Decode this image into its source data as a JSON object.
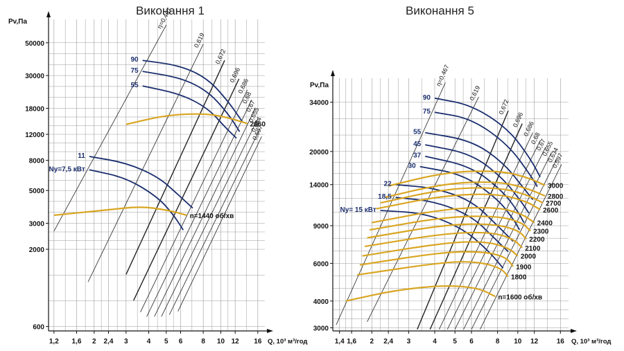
{
  "colors": {
    "fan_curve": "#1a2e6e",
    "system_curve": "#d9a521",
    "grid": "#9a9a9a",
    "axis": "#111111",
    "efficiency_line": "#222222"
  },
  "chart_data": [
    {
      "type": "line",
      "title": "Виконання 1",
      "ylabel": "Pv,Па",
      "xlabel": "Q, 10³ м³/год",
      "x_scale": "log",
      "y_scale": "log",
      "xlim": [
        1.12,
        17.5
      ],
      "ylim": [
        560,
        72000
      ],
      "grid": true,
      "x_ticks": [
        1.2,
        1.6,
        2,
        2.4,
        3,
        4,
        5,
        6,
        8,
        10,
        12,
        16
      ],
      "x_tick_labels": [
        "1,2",
        "1,6",
        "2",
        "2,4",
        "3",
        "4",
        "5",
        "6",
        "8",
        "10",
        "12",
        "16"
      ],
      "y_ticks": [
        600,
        2000,
        3000,
        5000,
        8000,
        12000,
        18000,
        30000,
        50000
      ],
      "y_tick_labels": [
        "600",
        "2000",
        "3000",
        "5000",
        "8000",
        "12000",
        "18000",
        "30000",
        "50000"
      ],
      "efficiency_lines": [
        {
          "label": "η=0,467",
          "points": [
            [
              1.2,
              2650
            ],
            [
              5.0,
              66000
            ]
          ]
        },
        {
          "label": "0,619",
          "points": [
            [
              1.85,
              1200
            ],
            [
              8.0,
              49000
            ]
          ]
        },
        {
          "label": "0,672",
          "points": [
            [
              3.0,
              1350
            ],
            [
              10.5,
              38000
            ]
          ]
        },
        {
          "label": "0,696",
          "points": [
            [
              3.3,
              900
            ],
            [
              12.6,
              28500
            ]
          ]
        },
        {
          "label": "0,686",
          "points": [
            [
              3.6,
              750
            ],
            [
              14.0,
              24000
            ]
          ]
        },
        {
          "label": "0,68",
          "points": [
            [
              3.9,
              700
            ],
            [
              14.8,
              20500
            ]
          ]
        },
        {
          "label": "0,67",
          "points": [
            [
              4.3,
              700
            ],
            [
              15.5,
              18000
            ]
          ]
        },
        {
          "label": "0,655",
          "points": [
            [
              4.7,
              700
            ],
            [
              16.0,
              15300
            ]
          ]
        },
        {
          "label": "0,634",
          "points": [
            [
              5.2,
              720
            ],
            [
              16.5,
              13200
            ]
          ]
        },
        {
          "label": "0,597",
          "points": [
            [
              5.8,
              760
            ],
            [
              16.8,
              11600
            ]
          ]
        }
      ],
      "series": [
        {
          "name": "90",
          "kind": "fan",
          "points": [
            [
              3.7,
              38000
            ],
            [
              6.0,
              35000
            ],
            [
              8.5,
              28500
            ],
            [
              11.0,
              20000
            ],
            [
              13.2,
              14500
            ]
          ]
        },
        {
          "name": "75",
          "kind": "fan",
          "points": [
            [
              3.7,
              32000
            ],
            [
              6.0,
              29000
            ],
            [
              8.5,
              23500
            ],
            [
              11.0,
              16500
            ],
            [
              12.7,
              12500
            ]
          ]
        },
        {
          "name": "55",
          "kind": "fan",
          "points": [
            [
              3.7,
              25500
            ],
            [
              6.0,
              22500
            ],
            [
              8.5,
              18000
            ],
            [
              10.5,
              13500
            ],
            [
              12.2,
              11300
            ]
          ]
        },
        {
          "name": "11",
          "kind": "fan",
          "points": [
            [
              1.88,
              8500
            ],
            [
              3.0,
              7700
            ],
            [
              4.5,
              6200
            ],
            [
              5.8,
              4700
            ],
            [
              7.0,
              3800
            ]
          ]
        },
        {
          "name": "Ny=7,5 кВт",
          "kind": "fan",
          "points": [
            [
              1.88,
              6900
            ],
            [
              3.0,
              6100
            ],
            [
              4.5,
              4500
            ],
            [
              5.5,
              3400
            ],
            [
              6.2,
              2700
            ]
          ]
        },
        {
          "name": "2960",
          "kind": "system",
          "points": [
            [
              3.0,
              14000
            ],
            [
              5.0,
              16200
            ],
            [
              8.0,
              16600
            ],
            [
              10.5,
              15800
            ],
            [
              14.0,
              14200
            ]
          ]
        },
        {
          "name": "n=1440 об/хв",
          "kind": "system",
          "points": [
            [
              1.2,
              3400
            ],
            [
              2.4,
              3700
            ],
            [
              3.6,
              3900
            ],
            [
              5.0,
              3700
            ],
            [
              6.5,
              3400
            ]
          ]
        }
      ]
    },
    {
      "type": "line",
      "title": "Виконання 5",
      "ylabel": "Pv,Па",
      "xlabel": "Q, 10³ м³/год",
      "x_scale": "log",
      "y_scale": "log",
      "xlim": [
        1.3,
        17.5
      ],
      "ylim": [
        2900,
        44000
      ],
      "grid": true,
      "x_ticks": [
        1.4,
        1.6,
        2,
        2.4,
        3,
        4,
        5,
        6,
        8,
        10,
        12,
        16
      ],
      "x_tick_labels": [
        "1,4",
        "1,6",
        "2",
        "2,4",
        "3",
        "4",
        "5",
        "6",
        "8",
        "10",
        "12",
        "16"
      ],
      "y_ticks": [
        3000,
        4000,
        6000,
        9000,
        14000,
        20000,
        34000
      ],
      "y_tick_labels": [
        "3000",
        "4000",
        "6000",
        "9000",
        "14000",
        "20000",
        "34000"
      ],
      "efficiency_lines": [
        {
          "label": "η=0,467",
          "points": [
            [
              1.35,
              3100
            ],
            [
              4.5,
              42000
            ]
          ]
        },
        {
          "label": "0,619",
          "points": [
            [
              1.9,
              3200
            ],
            [
              6.5,
              36000
            ]
          ]
        },
        {
          "label": "0,672",
          "points": [
            [
              3.3,
              2950
            ],
            [
              9.0,
              31000
            ]
          ]
        },
        {
          "label": "0,696",
          "points": [
            [
              3.8,
              2950
            ],
            [
              10.5,
              27000
            ]
          ]
        },
        {
          "label": "0,686",
          "points": [
            [
              4.2,
              2950
            ],
            [
              11.8,
              24500
            ]
          ]
        },
        {
          "label": "0,68",
          "points": [
            [
              4.6,
              2950
            ],
            [
              12.8,
              22500
            ]
          ]
        },
        {
          "label": "0,67",
          "points": [
            [
              5.0,
              2950
            ],
            [
              13.6,
              21000
            ]
          ]
        },
        {
          "label": "0,655",
          "points": [
            [
              5.5,
              2950
            ],
            [
              14.5,
              19800
            ]
          ]
        },
        {
          "label": "0,634",
          "points": [
            [
              6.0,
              2950
            ],
            [
              15.4,
              18500
            ]
          ]
        },
        {
          "label": "0,597",
          "points": [
            [
              6.6,
              2950
            ],
            [
              16.2,
              17400
            ]
          ]
        }
      ],
      "series": [
        {
          "name": "90",
          "kind": "fan",
          "points": [
            [
              4.0,
              35500
            ],
            [
              6.0,
              33000
            ],
            [
              9.0,
              25500
            ],
            [
              11.5,
              18500
            ],
            [
              12.8,
              15200
            ]
          ]
        },
        {
          "name": "75",
          "kind": "fan",
          "points": [
            [
              4.0,
              30500
            ],
            [
              6.0,
              28500
            ],
            [
              9.0,
              21500
            ],
            [
              11.5,
              15500
            ],
            [
              12.4,
              13700
            ]
          ]
        },
        {
          "name": "55",
          "kind": "fan",
          "points": [
            [
              3.6,
              24500
            ],
            [
              6.0,
              22500
            ],
            [
              8.5,
              17800
            ],
            [
              10.8,
              13300
            ],
            [
              11.8,
              11900
            ]
          ]
        },
        {
          "name": "45",
          "kind": "fan",
          "points": [
            [
              3.6,
              21500
            ],
            [
              6.0,
              19500
            ],
            [
              8.5,
              15000
            ],
            [
              10.5,
              11500
            ],
            [
              11.3,
              10300
            ]
          ]
        },
        {
          "name": "37",
          "kind": "fan",
          "points": [
            [
              3.6,
              19000
            ],
            [
              6.0,
              17000
            ],
            [
              8.5,
              13000
            ],
            [
              10.0,
              10500
            ],
            [
              10.7,
              9300
            ]
          ]
        },
        {
          "name": "30",
          "kind": "fan",
          "points": [
            [
              3.4,
              17000
            ],
            [
              5.5,
              15600
            ],
            [
              8.0,
              12000
            ],
            [
              9.5,
              9700
            ],
            [
              10.2,
              8600
            ]
          ]
        },
        {
          "name": "22",
          "kind": "fan",
          "points": [
            [
              2.6,
              14000
            ],
            [
              4.0,
              13500
            ],
            [
              6.0,
              11800
            ],
            [
              8.0,
              9000
            ],
            [
              9.5,
              7600
            ]
          ]
        },
        {
          "name": "18,5",
          "kind": "fan",
          "points": [
            [
              2.6,
              12200
            ],
            [
              4.0,
              11700
            ],
            [
              6.0,
              10000
            ],
            [
              7.8,
              7800
            ],
            [
              9.0,
              6800
            ]
          ]
        },
        {
          "name": "Ny= 15 кВт",
          "kind": "fan",
          "points": [
            [
              2.2,
              10600
            ],
            [
              3.6,
              10300
            ],
            [
              5.5,
              8700
            ],
            [
              7.3,
              6800
            ],
            [
              8.5,
              5700
            ]
          ]
        },
        {
          "name": "3000",
          "kind": "system",
          "points": [
            [
              2.4,
              13800
            ],
            [
              4.5,
              16000
            ],
            [
              8.0,
              16300
            ],
            [
              11.0,
              15200
            ],
            [
              13.5,
              13900
            ]
          ]
        },
        {
          "name": "2800",
          "kind": "system",
          "points": [
            [
              2.3,
              12200
            ],
            [
              4.5,
              14200
            ],
            [
              8.0,
              14500
            ],
            [
              11.0,
              13500
            ],
            [
              13.5,
              12400
            ]
          ]
        },
        {
          "name": "2700",
          "kind": "system",
          "points": [
            [
              2.2,
              11500
            ],
            [
              4.5,
              13400
            ],
            [
              8.0,
              13600
            ],
            [
              11.0,
              12600
            ],
            [
              13.2,
              11500
            ]
          ]
        },
        {
          "name": "2600",
          "kind": "system",
          "points": [
            [
              2.1,
              10800
            ],
            [
              4.5,
              12500
            ],
            [
              8.0,
              12700
            ],
            [
              11.0,
              11700
            ],
            [
              12.8,
              10700
            ]
          ]
        },
        {
          "name": "2400",
          "kind": "system",
          "points": [
            [
              2.0,
              9300
            ],
            [
              4.5,
              10800
            ],
            [
              8.0,
              11000
            ],
            [
              10.5,
              10200
            ],
            [
              12.0,
              9300
            ]
          ]
        },
        {
          "name": "2300",
          "kind": "system",
          "points": [
            [
              1.95,
              8600
            ],
            [
              4.5,
              9900
            ],
            [
              8.0,
              10000
            ],
            [
              10.5,
              9300
            ],
            [
              11.5,
              8500
            ]
          ]
        },
        {
          "name": "2200",
          "kind": "system",
          "points": [
            [
              1.9,
              7900
            ],
            [
              4.5,
              9100
            ],
            [
              7.5,
              9200
            ],
            [
              10.0,
              8600
            ],
            [
              11.0,
              7800
            ]
          ]
        },
        {
          "name": "2100",
          "kind": "system",
          "points": [
            [
              1.85,
              7200
            ],
            [
              4.5,
              8300
            ],
            [
              7.5,
              8400
            ],
            [
              9.5,
              7800
            ],
            [
              10.5,
              7100
            ]
          ]
        },
        {
          "name": "2000",
          "kind": "system",
          "points": [
            [
              1.8,
              6500
            ],
            [
              4.5,
              7500
            ],
            [
              7.0,
              7600
            ],
            [
              9.0,
              7100
            ],
            [
              10.0,
              6500
            ]
          ]
        },
        {
          "name": "1900",
          "kind": "system",
          "points": [
            [
              1.75,
              5900
            ],
            [
              4.5,
              6800
            ],
            [
              7.0,
              6800
            ],
            [
              8.8,
              6400
            ],
            [
              9.5,
              5800
            ]
          ]
        },
        {
          "name": "1800",
          "kind": "system",
          "points": [
            [
              1.7,
              5300
            ],
            [
              4.5,
              6100
            ],
            [
              6.5,
              6100
            ],
            [
              8.3,
              5700
            ],
            [
              9.0,
              5200
            ]
          ]
        },
        {
          "name": "n=1600 об/хв",
          "kind": "system",
          "points": [
            [
              1.5,
              4000
            ],
            [
              2.6,
              4500
            ],
            [
              4.5,
              4750
            ],
            [
              6.5,
              4600
            ],
            [
              7.8,
              4200
            ]
          ]
        }
      ]
    }
  ]
}
